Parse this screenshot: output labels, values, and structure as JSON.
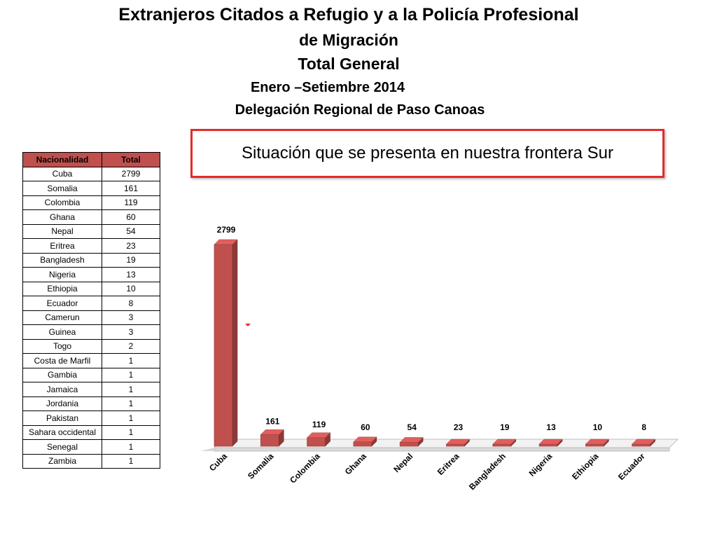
{
  "header": {
    "line1": "Extranjeros Citados a Refugio y a la Policía Profesional",
    "line2": "de Migración",
    "line3": "Total General",
    "line4": "Enero –Setiembre 2014",
    "line5": "Delegación Regional de Paso Canoas"
  },
  "callout": {
    "text": "Situación que se presenta en nuestra frontera Sur"
  },
  "table": {
    "headers": [
      "Nacionalidad",
      "Total"
    ],
    "rows": [
      [
        "Cuba",
        "2799"
      ],
      [
        "Somalia",
        "161"
      ],
      [
        "Colombia",
        "119"
      ],
      [
        "Ghana",
        "60"
      ],
      [
        "Nepal",
        "54"
      ],
      [
        "Eritrea",
        "23"
      ],
      [
        "Bangladesh",
        "19"
      ],
      [
        "Nigeria",
        "13"
      ],
      [
        "Ethiopia",
        "10"
      ],
      [
        "Ecuador",
        "8"
      ],
      [
        "Camerun",
        "3"
      ],
      [
        "Guinea",
        "3"
      ],
      [
        "Togo",
        "2"
      ],
      [
        "Costa de Marfil",
        "1"
      ],
      [
        "Gambia",
        "1"
      ],
      [
        "Jamaica",
        "1"
      ],
      [
        "Jordania",
        "1"
      ],
      [
        "Pakistan",
        "1"
      ],
      [
        "Sahara occidental",
        "1"
      ],
      [
        "Senegal",
        "1"
      ],
      [
        "Zambia",
        "1"
      ]
    ]
  },
  "colors": {
    "bar": "#c0504d",
    "header_fill": "#c0504d",
    "callout_border": "#e32b2b"
  },
  "chart_data": {
    "type": "bar",
    "categories": [
      "Cuba",
      "Somalia",
      "Colombia",
      "Ghana",
      "Nepal",
      "Eritrea",
      "Bangladesh",
      "Nigeria",
      "Ethiopia",
      "Ecuador"
    ],
    "values": [
      2799,
      161,
      119,
      60,
      54,
      23,
      19,
      13,
      10,
      8
    ],
    "data_labels": [
      "2799",
      "161",
      "119",
      "60",
      "54",
      "23",
      "19",
      "13",
      "10",
      "8"
    ],
    "style": "3d-column",
    "ylim": [
      0,
      2799
    ],
    "grid": false,
    "legend": "none"
  }
}
